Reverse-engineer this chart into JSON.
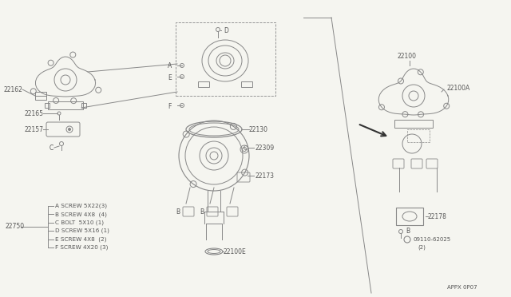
{
  "background_color": "#f5f5f0",
  "line_color": "#888888",
  "dark_color": "#444444",
  "text_color": "#555555",
  "page_id": "APPX 0P07",
  "fig_width": 6.4,
  "fig_height": 3.72,
  "dpi": 100,
  "parts": {
    "p22100": "22100",
    "p22100A": "22100A",
    "p22162": "22162",
    "p22165": "22165",
    "p22157": "22157",
    "p22130": "22130",
    "p22309": "22309",
    "p22173": "22173",
    "p22100E": "22100E",
    "p22178": "22178",
    "pbolt": "09110-62025",
    "p22750": "22750"
  },
  "legend_lines": [
    "A SCREW 5X22(3)",
    "B SCREW 4X8  (4)",
    "C BOLT  5X10 (1)",
    "D SCREW 5X16 (1)",
    "E SCREW 4X8  (2)",
    "F SCREW 4X20 (3)"
  ]
}
